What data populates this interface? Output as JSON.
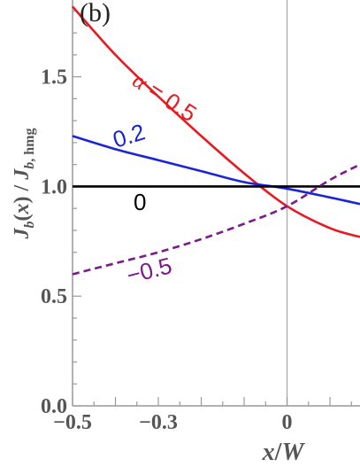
{
  "chart_data": {
    "type": "line",
    "panel_label": "(b)",
    "xlabel": "x/W",
    "ylabel": "J_b(x) / J_b, hmg",
    "xlim": [
      -0.5,
      0.17
    ],
    "ylim": [
      0.0,
      1.85
    ],
    "x_ticks": [
      -0.5,
      -0.3,
      0
    ],
    "x_tick_labels": [
      "−0.5",
      "−0.3",
      "0"
    ],
    "y_ticks": [
      0.0,
      0.5,
      1.0,
      1.5
    ],
    "y_tick_labels": [
      "0.0",
      "0.5",
      "1.0",
      "1.5"
    ],
    "vertical_reference_x": 0,
    "series": [
      {
        "label": "α = 0.5",
        "color": "#e8191f",
        "dash": "solid",
        "x": [
          -0.5,
          -0.4,
          -0.3,
          -0.2,
          -0.1,
          0.0,
          0.1,
          0.17
        ],
        "y": [
          1.82,
          1.6,
          1.41,
          1.23,
          1.06,
          0.91,
          0.81,
          0.77
        ]
      },
      {
        "label": "0.2",
        "color": "#1a24d9",
        "dash": "solid",
        "x": [
          -0.5,
          -0.4,
          -0.3,
          -0.2,
          -0.1,
          0.0,
          0.1,
          0.17
        ],
        "y": [
          1.23,
          1.17,
          1.12,
          1.07,
          1.02,
          0.99,
          0.95,
          0.92
        ]
      },
      {
        "label": "0",
        "color": "#000000",
        "dash": "solid",
        "x": [
          -0.5,
          0.17
        ],
        "y": [
          1.0,
          1.0
        ]
      },
      {
        "label": "−0.5",
        "color": "#7a1a8c",
        "dash": "dashed",
        "x": [
          -0.5,
          -0.4,
          -0.3,
          -0.2,
          -0.1,
          0.0,
          0.1,
          0.17
        ],
        "y": [
          0.6,
          0.65,
          0.7,
          0.76,
          0.83,
          0.91,
          1.03,
          1.1
        ]
      }
    ]
  }
}
